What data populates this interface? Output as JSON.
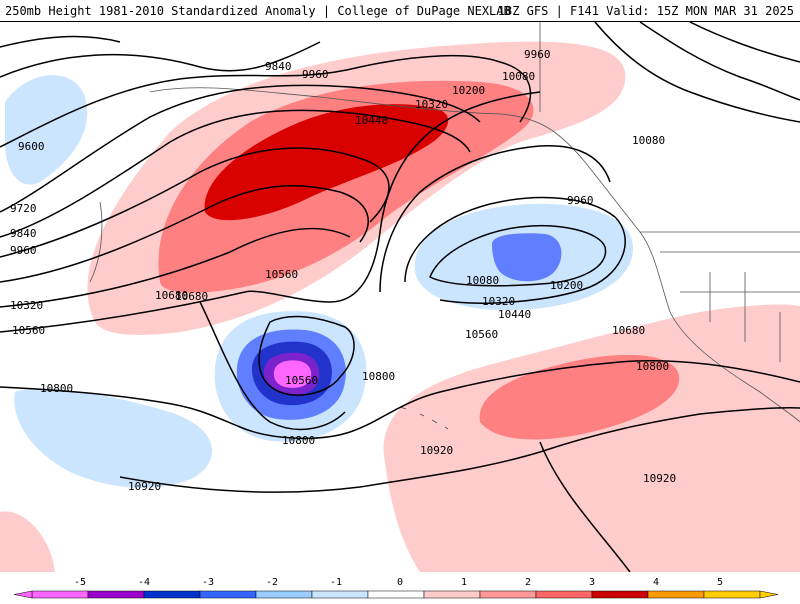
{
  "header": {
    "left_text": "250mb Height 1981-2010 Standardized Anomaly | College of DuPage NEXLAB",
    "right_text": "18Z GFS | F141 Valid: 15Z MON MAR 31 2025"
  },
  "contour_labels": [
    "9600",
    "9720",
    "9840",
    "9960",
    "10080",
    "10200",
    "10320",
    "10440",
    "10560",
    "10680",
    "10800",
    "10920",
    "9840",
    "9960",
    "10320",
    "10440",
    "10560",
    "10680",
    "10800",
    "10920",
    "9960",
    "10080",
    "10200",
    "10320",
    "10440",
    "10560",
    "10680",
    "10800",
    "10920",
    "10080",
    "9960",
    "10080",
    "10200",
    "10320",
    "10440",
    "10560",
    "10680",
    "10800",
    "10920"
  ],
  "legend": {
    "ticks": [
      "-5",
      "-4",
      "-3",
      "-2",
      "-1",
      "0",
      "1",
      "2",
      "3",
      "4",
      "5"
    ],
    "colors": [
      "#ff66ff",
      "#9900cc",
      "#0033cc",
      "#3366ff",
      "#99ccff",
      "#cce5ff",
      "#ffffff",
      "#ffcccc",
      "#ff9999",
      "#ff6666",
      "#cc0000",
      "#ff9900",
      "#ffcc00"
    ]
  },
  "shading_colors": {
    "pos1": "#ffcccc",
    "pos2": "#ff8080",
    "pos3": "#d90000",
    "neg1": "#cce5ff",
    "neg2": "#5f7fff",
    "neg3": "#2233cc",
    "neg4": "#7a22cc",
    "neg5": "#ff66ff"
  }
}
